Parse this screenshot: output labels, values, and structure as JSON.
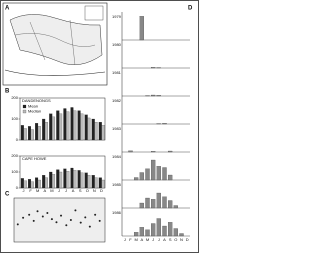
{
  "panels": {
    "a": {
      "label": "A"
    },
    "b": {
      "label": "B",
      "months": [
        "J",
        "F",
        "M",
        "A",
        "M",
        "J",
        "J",
        "A",
        "S",
        "O",
        "N",
        "D"
      ],
      "legend": [
        "Mean",
        "Median"
      ],
      "ylim": [
        0,
        200
      ],
      "yticks": [
        0,
        100,
        200
      ],
      "charts": [
        {
          "title": "DANDENONGS",
          "mean": [
            70,
            65,
            80,
            100,
            125,
            140,
            150,
            155,
            140,
            120,
            100,
            85
          ],
          "median": [
            55,
            50,
            65,
            85,
            110,
            125,
            135,
            140,
            125,
            105,
            85,
            70
          ]
        },
        {
          "title": "CAPE HOWE",
          "mean": [
            60,
            55,
            65,
            80,
            100,
            115,
            120,
            125,
            110,
            95,
            80,
            65
          ],
          "median": [
            45,
            40,
            50,
            65,
            85,
            100,
            105,
            110,
            95,
            80,
            65,
            50
          ]
        }
      ]
    },
    "c": {
      "label": "C",
      "xlim": [
        0,
        12
      ],
      "ylim": [
        0,
        100
      ],
      "points": {
        "x": [
          0.5,
          1.2,
          2,
          2.6,
          3.1,
          3.8,
          4.4,
          5,
          5.6,
          6.2,
          6.9,
          7.5,
          8.1,
          8.8,
          9.4,
          10,
          10.7,
          11.3
        ],
        "y": [
          40,
          55,
          62,
          48,
          70,
          58,
          66,
          52,
          45,
          60,
          38,
          50,
          72,
          44,
          56,
          35,
          62,
          48
        ]
      }
    },
    "d": {
      "label": "D",
      "ylim": [
        0,
        100
      ],
      "rows": [
        {
          "year": "1979",
          "values": [
            0,
            0,
            0,
            95,
            0,
            0,
            0,
            0,
            0,
            0,
            0,
            0
          ]
        },
        {
          "year": "1980",
          "values": [
            0,
            0,
            0,
            0,
            0,
            3,
            2,
            0,
            0,
            0,
            0,
            0
          ]
        },
        {
          "year": "1981",
          "values": [
            0,
            0,
            0,
            0,
            2,
            4,
            3,
            0,
            0,
            0,
            0,
            0
          ]
        },
        {
          "year": "1982",
          "values": [
            0,
            0,
            0,
            0,
            0,
            0,
            2,
            3,
            0,
            0,
            0,
            0
          ]
        },
        {
          "year": "1983",
          "values": [
            0,
            5,
            0,
            0,
            0,
            3,
            0,
            0,
            4,
            0,
            0,
            0
          ]
        },
        {
          "year": "1984",
          "values": [
            0,
            0,
            10,
            30,
            45,
            80,
            55,
            50,
            20,
            0,
            0,
            0
          ]
        },
        {
          "year": "1985",
          "values": [
            0,
            0,
            0,
            20,
            40,
            35,
            60,
            45,
            30,
            10,
            0,
            0
          ]
        },
        {
          "year": "1986",
          "values": [
            0,
            0,
            15,
            35,
            25,
            50,
            70,
            40,
            55,
            30,
            10,
            0
          ]
        }
      ]
    }
  }
}
